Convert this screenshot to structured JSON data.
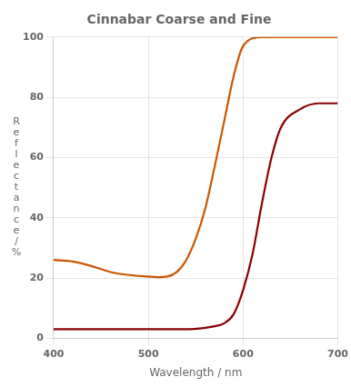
{
  "chart_data": {
    "type": "line",
    "title": "Cinnabar Coarse and Fine",
    "xlabel": "Wavelength / nm",
    "ylabel": "R\ne\nf\nl\ne\nc\nt\na\nn\nc\ne\n/\n%",
    "xlim": [
      400,
      700
    ],
    "ylim": [
      0,
      100
    ],
    "xticks": [
      400,
      500,
      600,
      700
    ],
    "yticks": [
      0,
      20,
      40,
      60,
      80,
      100
    ],
    "grid": true,
    "series": [
      {
        "color": "#cc5500",
        "x": [
          400,
          420,
          440,
          460,
          480,
          500,
          510,
          520,
          530,
          540,
          550,
          560,
          570,
          580,
          590,
          600,
          620,
          640,
          660,
          680,
          700
        ],
        "values": [
          26,
          25.5,
          24,
          22,
          21,
          20.5,
          20.3,
          20.5,
          22,
          26,
          33,
          43,
          57,
          72,
          87,
          97,
          100,
          100,
          100,
          100,
          100
        ]
      },
      {
        "color": "#8b0000",
        "x": [
          400,
          420,
          440,
          460,
          480,
          500,
          520,
          540,
          560,
          570,
          580,
          590,
          600,
          610,
          620,
          630,
          640,
          660,
          680,
          700
        ],
        "values": [
          3,
          3,
          3,
          3,
          3,
          3,
          3,
          3,
          3.5,
          4,
          5,
          8,
          16,
          28,
          45,
          60,
          70,
          76,
          78,
          78
        ]
      }
    ]
  }
}
